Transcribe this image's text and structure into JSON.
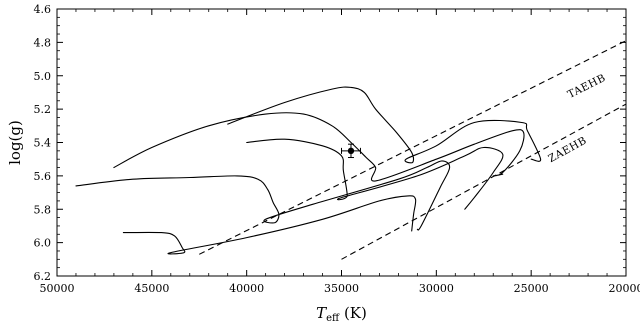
{
  "chart_data": {
    "type": "scatter",
    "title": "",
    "xlabel": "T_eff (K)",
    "xlabel_main": "T",
    "xlabel_sub": "eff",
    "xlabel_unit": " (K)",
    "ylabel": "log(g)",
    "xlim": [
      50000,
      20000
    ],
    "ylim": [
      4.6,
      6.2
    ],
    "x_reversed": true,
    "y_reversed": true,
    "xticks": [
      50000,
      45000,
      40000,
      35000,
      30000,
      25000,
      20000
    ],
    "yticks": [
      4.6,
      4.8,
      5.0,
      5.2,
      5.4,
      5.6,
      5.8,
      6.0,
      6.2
    ],
    "grid": false,
    "star": {
      "teff": 34500,
      "logg": 5.45,
      "teff_err": 500,
      "logg_err": 0.04
    },
    "reference_lines": [
      {
        "name": "TAEHB",
        "points": [
          [
            42500,
            6.07
          ],
          [
            20000,
            4.79
          ]
        ],
        "label_at": [
          22000,
          5.08
        ]
      },
      {
        "name": "ZAEHB",
        "points": [
          [
            35000,
            6.1
          ],
          [
            20000,
            5.17
          ]
        ],
        "label_at": [
          23000,
          5.46
        ]
      }
    ],
    "tracks": [
      {
        "points": [
          [
            41000,
            5.29
          ],
          [
            38000,
            5.16
          ],
          [
            35500,
            5.08
          ],
          [
            34500,
            5.07
          ],
          [
            33800,
            5.1
          ],
          [
            33200,
            5.2
          ],
          [
            32100,
            5.34
          ],
          [
            31300,
            5.46
          ],
          [
            31250,
            5.52
          ],
          [
            31600,
            5.5
          ],
          [
            30000,
            5.42
          ],
          [
            28000,
            5.28
          ],
          [
            25500,
            5.28
          ],
          [
            25200,
            5.33
          ],
          [
            24500,
            5.5
          ],
          [
            25000,
            5.5
          ]
        ]
      },
      {
        "points": [
          [
            47000,
            5.55
          ],
          [
            45000,
            5.43
          ],
          [
            42000,
            5.3
          ],
          [
            39000,
            5.23
          ],
          [
            37000,
            5.23
          ],
          [
            35500,
            5.3
          ],
          [
            34500,
            5.4
          ],
          [
            33700,
            5.49
          ],
          [
            33200,
            5.55
          ],
          [
            33200,
            5.63
          ],
          [
            30000,
            5.5
          ],
          [
            28000,
            5.41
          ],
          [
            26000,
            5.33
          ],
          [
            25400,
            5.34
          ],
          [
            25600,
            5.45
          ],
          [
            26500,
            5.58
          ],
          [
            27000,
            5.6
          ],
          [
            26500,
            5.59
          ]
        ]
      },
      {
        "points": [
          [
            40000,
            5.4
          ],
          [
            38000,
            5.38
          ],
          [
            36000,
            5.42
          ],
          [
            35000,
            5.48
          ],
          [
            34900,
            5.57
          ],
          [
            34700,
            5.72
          ],
          [
            35000,
            5.73
          ],
          [
            31000,
            5.6
          ],
          [
            28500,
            5.48
          ],
          [
            27500,
            5.43
          ],
          [
            26500,
            5.47
          ],
          [
            27000,
            5.58
          ],
          [
            28000,
            5.73
          ],
          [
            28500,
            5.8
          ]
        ]
      },
      {
        "points": [
          [
            49000,
            5.66
          ],
          [
            46000,
            5.62
          ],
          [
            43000,
            5.61
          ],
          [
            40500,
            5.6
          ],
          [
            39400,
            5.62
          ],
          [
            38900,
            5.68
          ],
          [
            38600,
            5.76
          ],
          [
            38300,
            5.83
          ],
          [
            38500,
            5.88
          ],
          [
            39000,
            5.86
          ],
          [
            36500,
            5.77
          ],
          [
            32000,
            5.62
          ],
          [
            30500,
            5.55
          ],
          [
            29700,
            5.51
          ],
          [
            29300,
            5.55
          ],
          [
            29800,
            5.67
          ],
          [
            30800,
            5.9
          ],
          [
            31000,
            5.92
          ]
        ]
      },
      {
        "points": [
          [
            46500,
            5.94
          ],
          [
            44500,
            5.94
          ],
          [
            43800,
            5.96
          ],
          [
            43400,
            6.03
          ],
          [
            43300,
            6.06
          ],
          [
            44000,
            6.06
          ],
          [
            40000,
            5.97
          ],
          [
            36000,
            5.86
          ],
          [
            33000,
            5.75
          ],
          [
            31500,
            5.72
          ],
          [
            31100,
            5.74
          ],
          [
            31200,
            5.83
          ],
          [
            31300,
            5.93
          ]
        ]
      }
    ]
  }
}
